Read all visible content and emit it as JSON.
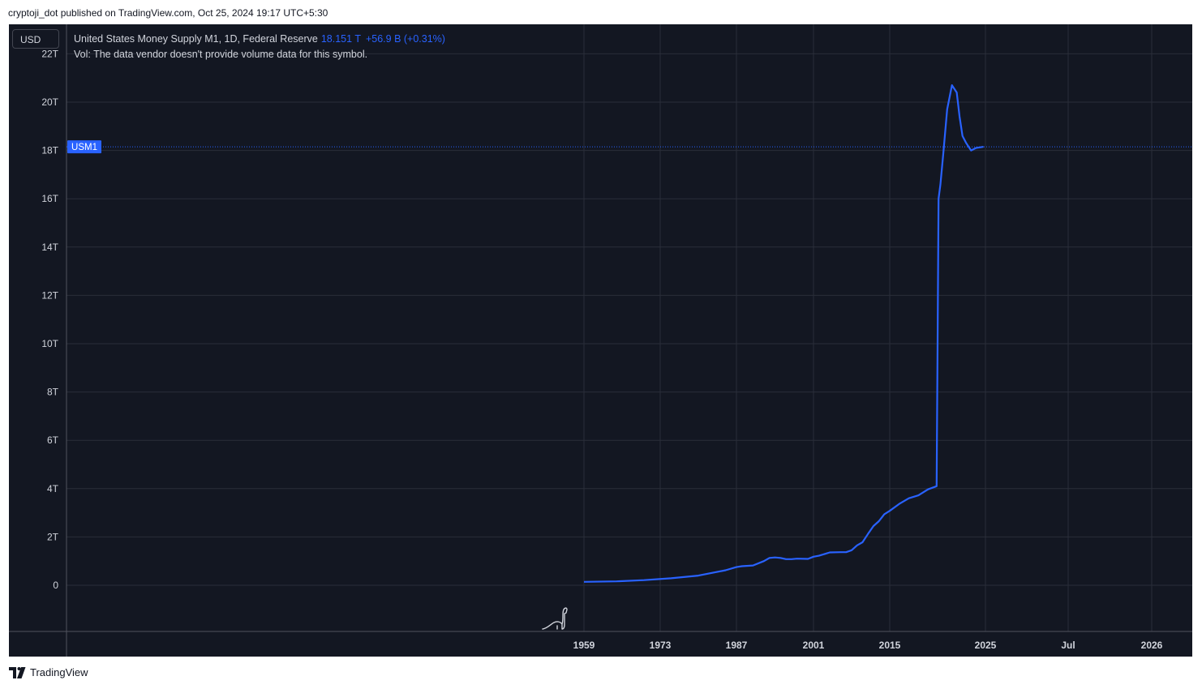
{
  "header": {
    "attribution": "cryptoji_dot published on TradingView.com, Oct 25, 2024 19:17 UTC+5:30"
  },
  "currency": {
    "label": "USD"
  },
  "legend": {
    "title": "United States Money Supply M1, 1D, Federal Reserve",
    "value": "18.151 T",
    "change": "+56.9 B (+0.31%)",
    "volume_note": "Vol: The data vendor doesn't provide volume data for this symbol."
  },
  "footer": {
    "brand": "TradingView",
    "logo_icon": "tradingview-logo-icon"
  },
  "colors": {
    "background": "#131722",
    "grid": "#2a2e39",
    "text": "#d1d4dc",
    "series": "#2962ff"
  },
  "chart_data": {
    "type": "line",
    "series": [
      {
        "name": "USM1",
        "x": [
          1959,
          1965,
          1970,
          1975,
          1980,
          1985,
          1987,
          1988,
          1990,
          1992,
          1993,
          1994,
          1995,
          1996,
          1997,
          1998,
          2000,
          2001,
          2002,
          2004,
          2006,
          2007,
          2008,
          2009,
          2010,
          2011,
          2012,
          2013,
          2014,
          2015,
          2016,
          2017,
          2018,
          2019,
          2019.9,
          2020.1,
          2020.3,
          2020.6,
          2021,
          2021.5,
          2022,
          2022.3,
          2022.6,
          2023,
          2023.5,
          2024,
          2024.8
        ],
        "y": [
          0.14,
          0.16,
          0.21,
          0.29,
          0.4,
          0.62,
          0.75,
          0.79,
          0.82,
          1.0,
          1.13,
          1.15,
          1.13,
          1.08,
          1.08,
          1.1,
          1.09,
          1.18,
          1.22,
          1.36,
          1.37,
          1.37,
          1.45,
          1.65,
          1.78,
          2.12,
          2.45,
          2.65,
          2.94,
          3.08,
          3.37,
          3.6,
          3.72,
          3.97,
          4.1,
          16.0,
          16.6,
          17.9,
          19.7,
          20.7,
          20.4,
          19.4,
          18.6,
          18.3,
          18.0,
          18.1,
          18.15
        ]
      }
    ],
    "x_ticks": [
      "1959",
      "1973",
      "1987",
      "2001",
      "2015",
      "2025",
      "Jul",
      "2026"
    ],
    "y_ticks": [
      "0",
      "2T",
      "4T",
      "6T",
      "8T",
      "10T",
      "12T",
      "14T",
      "16T",
      "18T",
      "20T",
      "22T"
    ],
    "ylim": [
      -1.9,
      22
    ],
    "last_value_label": "USM1",
    "last_value": 18.151,
    "grid": true
  }
}
